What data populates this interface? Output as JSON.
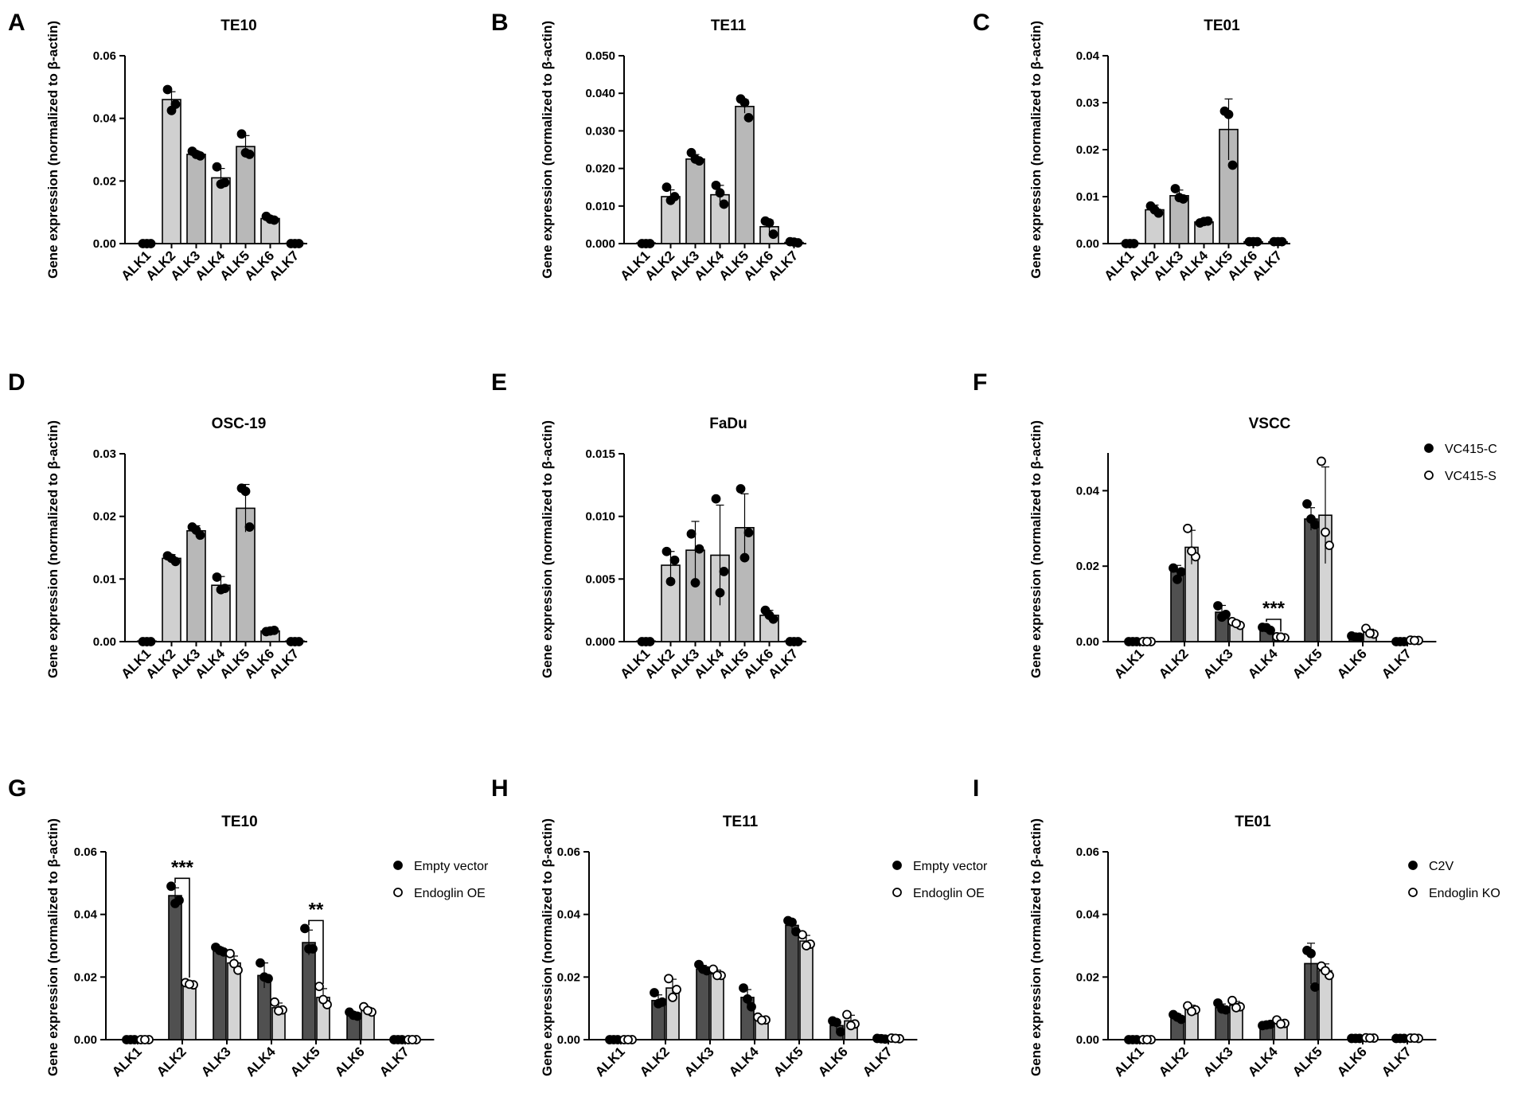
{
  "figure": {
    "ylabel": "Gene expression (normalized to β-actin)",
    "colors": {
      "single_bar": "#c8c8c8",
      "ctrl_bar": "#505050",
      "treat_bar": "#d4d4d4",
      "axis": "#000000",
      "point": "#000000"
    }
  },
  "chart_data": [
    {
      "panel": "A",
      "type": "bar",
      "title": "TE10",
      "categories": [
        "ALK1",
        "ALK2",
        "ALK3",
        "ALK4",
        "ALK5",
        "ALK6",
        "ALK7"
      ],
      "ylabel": "Gene expression (normalized to β-actin)",
      "ylim": [
        0,
        0.06
      ],
      "yticks": [
        0,
        0.02,
        0.04,
        0.06
      ],
      "ytick_labels": [
        "0.00",
        "0.02",
        "0.04",
        "0.06"
      ],
      "series": [
        {
          "name": "",
          "values": [
            0.0001,
            0.046,
            0.0285,
            0.021,
            0.031,
            0.008,
            0.0001
          ],
          "errors": [
            0.0001,
            0.0025,
            0.001,
            0.003,
            0.0035,
            0.0008,
            0.0001
          ],
          "points": [
            [
              0,
              0,
              0
            ],
            [
              0.0492,
              0.0445,
              0.0425
            ],
            [
              0.0295,
              0.028,
              0.0285
            ],
            [
              0.0245,
              0.0195,
              0.019
            ],
            [
              0.035,
              0.0285,
              0.029
            ],
            [
              0.0087,
              0.0075,
              0.0078
            ],
            [
              0,
              0,
              0
            ]
          ]
        }
      ]
    },
    {
      "panel": "B",
      "type": "bar",
      "title": "TE11",
      "categories": [
        "ALK1",
        "ALK2",
        "ALK3",
        "ALK4",
        "ALK5",
        "ALK6",
        "ALK7"
      ],
      "ylabel": "Gene expression (normalized to β-actin)",
      "ylim": [
        0,
        0.05
      ],
      "yticks": [
        0,
        0.01,
        0.02,
        0.03,
        0.04,
        0.05
      ],
      "ytick_labels": [
        "0.000",
        "0.010",
        "0.020",
        "0.030",
        "0.040",
        "0.050"
      ],
      "series": [
        {
          "name": "",
          "values": [
            0.0002,
            0.0125,
            0.0225,
            0.013,
            0.0365,
            0.0045,
            0.0003
          ],
          "errors": [
            0.0002,
            0.0018,
            0.0012,
            0.0025,
            0.0018,
            0.0018,
            0.0002
          ],
          "points": [
            [
              0,
              0,
              0
            ],
            [
              0.015,
              0.0125,
              0.0115
            ],
            [
              0.0242,
              0.022,
              0.0225
            ],
            [
              0.0155,
              0.0105,
              0.0135
            ],
            [
              0.0385,
              0.0335,
              0.0375
            ],
            [
              0.006,
              0.0025,
              0.0055
            ],
            [
              0.0005,
              0.0002,
              0.0004
            ]
          ]
        }
      ]
    },
    {
      "panel": "C",
      "type": "bar",
      "title": "TE01",
      "categories": [
        "ALK1",
        "ALK2",
        "ALK3",
        "ALK4",
        "ALK5",
        "ALK6",
        "ALK7"
      ],
      "ylabel": "Gene expression (normalized to β-actin)",
      "ylim": [
        0,
        0.04
      ],
      "yticks": [
        0,
        0.01,
        0.02,
        0.03,
        0.04
      ],
      "ytick_labels": [
        "0.00",
        "0.01",
        "0.02",
        "0.03",
        "0.04"
      ],
      "series": [
        {
          "name": "",
          "values": [
            0.0001,
            0.0072,
            0.0102,
            0.0046,
            0.0243,
            0.0004,
            0.0004
          ],
          "errors": [
            0.0001,
            0.001,
            0.0012,
            0.0005,
            0.0065,
            0.0002,
            0.0002
          ],
          "points": [
            [
              0,
              0,
              0
            ],
            [
              0.008,
              0.0065,
              0.0072
            ],
            [
              0.0117,
              0.0095,
              0.0098
            ],
            [
              0.0044,
              0.0048,
              0.0047
            ],
            [
              0.0282,
              0.0167,
              0.0275
            ],
            [
              0.0004,
              0.0004,
              0.0004
            ],
            [
              0.0004,
              0.0004,
              0.0004
            ]
          ]
        }
      ]
    },
    {
      "panel": "D",
      "type": "bar",
      "title": "OSC-19",
      "categories": [
        "ALK1",
        "ALK2",
        "ALK3",
        "ALK4",
        "ALK5",
        "ALK6",
        "ALK7"
      ],
      "ylabel": "Gene expression (normalized to β-actin)",
      "ylim": [
        0,
        0.03
      ],
      "yticks": [
        0,
        0.01,
        0.02,
        0.03
      ],
      "ytick_labels": [
        "0.00",
        "0.01",
        "0.02",
        "0.03"
      ],
      "series": [
        {
          "name": "",
          "values": [
            0.0001,
            0.0133,
            0.0177,
            0.009,
            0.0213,
            0.0017,
            0.0001
          ],
          "errors": [
            0.0001,
            0.0006,
            0.0008,
            0.0014,
            0.0038,
            0.0002,
            0.0001
          ],
          "points": [
            [
              0,
              0,
              0
            ],
            [
              0.0137,
              0.0128,
              0.0133
            ],
            [
              0.0183,
              0.017,
              0.0178
            ],
            [
              0.0103,
              0.0085,
              0.0083
            ],
            [
              0.0245,
              0.0183,
              0.024
            ],
            [
              0.0016,
              0.0018,
              0.0017
            ],
            [
              0,
              0,
              0
            ]
          ]
        }
      ]
    },
    {
      "panel": "E",
      "type": "bar",
      "title": "FaDu",
      "categories": [
        "ALK1",
        "ALK2",
        "ALK3",
        "ALK4",
        "ALK5",
        "ALK6",
        "ALK7"
      ],
      "ylabel": "Gene expression (normalized to β-actin)",
      "ylim": [
        0,
        0.015
      ],
      "yticks": [
        0,
        0.005,
        0.01,
        0.015
      ],
      "ytick_labels": [
        "0.000",
        "0.005",
        "0.010",
        "0.015"
      ],
      "series": [
        {
          "name": "",
          "values": [
            5e-05,
            0.0061,
            0.0073,
            0.0069,
            0.0091,
            0.0021,
            5e-05
          ],
          "errors": [
            5e-05,
            0.0011,
            0.0023,
            0.004,
            0.0027,
            0.0004,
            5e-05
          ],
          "points": [
            [
              0,
              0,
              0
            ],
            [
              0.0072,
              0.0065,
              0.0048
            ],
            [
              0.0086,
              0.0074,
              0.0047
            ],
            [
              0.0114,
              0.0056,
              0.0039
            ],
            [
              0.0122,
              0.0087,
              0.0067
            ],
            [
              0.0025,
              0.0018,
              0.0021
            ],
            [
              0,
              0,
              0
            ]
          ]
        }
      ]
    },
    {
      "panel": "F",
      "type": "bar",
      "title": "VSCC",
      "categories": [
        "ALK1",
        "ALK2",
        "ALK3",
        "ALK4",
        "ALK5",
        "ALK6",
        "ALK7"
      ],
      "ylabel": "Gene expression (normalized to β-actin)",
      "ylim": [
        0,
        0.05
      ],
      "yticks": [
        0,
        0.02,
        0.04
      ],
      "ytick_labels": [
        "0.00",
        "0.02",
        "0.04"
      ],
      "series": [
        {
          "name": "VC415-C",
          "values": [
            0.0002,
            0.0185,
            0.0078,
            0.0035,
            0.0325,
            0.0013,
            0.0002
          ],
          "errors": [
            0.0002,
            0.0017,
            0.0018,
            0.0005,
            0.003,
            0.0003,
            0.0002
          ],
          "points": [
            [
              0,
              0,
              0
            ],
            [
              0.0195,
              0.0185,
              0.0165
            ],
            [
              0.0095,
              0.0072,
              0.0065
            ],
            [
              0.0038,
              0.003,
              0.0037
            ],
            [
              0.0365,
              0.031,
              0.0325
            ],
            [
              0.0015,
              0.0012,
              0.0012
            ],
            [
              0,
              0,
              0
            ]
          ]
        },
        {
          "name": "VC415-S",
          "values": [
            0.0002,
            0.025,
            0.0048,
            0.0012,
            0.0335,
            0.0025,
            0.0003
          ],
          "errors": [
            0.0002,
            0.0045,
            0.0008,
            0.0002,
            0.0128,
            0.0008,
            0.0002
          ],
          "points": [
            [
              0,
              0,
              0
            ],
            [
              0.03,
              0.0225,
              0.024
            ],
            [
              0.0053,
              0.0043,
              0.0048
            ],
            [
              0.0013,
              0.001,
              0.0012
            ],
            [
              0.0478,
              0.0255,
              0.029
            ],
            [
              0.0035,
              0.002,
              0.0022
            ],
            [
              0.0004,
              0.0003,
              0.0003
            ]
          ]
        }
      ],
      "annotations": [
        {
          "text": "***",
          "category": "ALK4"
        }
      ]
    },
    {
      "panel": "G",
      "type": "bar",
      "title": "TE10",
      "categories": [
        "ALK1",
        "ALK2",
        "ALK3",
        "ALK4",
        "ALK5",
        "ALK6",
        "ALK7"
      ],
      "ylabel": "Gene expression (normalized to β-actin)",
      "ylim": [
        0,
        0.06
      ],
      "yticks": [
        0,
        0.02,
        0.04,
        0.06
      ],
      "ytick_labels": [
        "0.00",
        "0.02",
        "0.04",
        "0.06"
      ],
      "series": [
        {
          "name": "Empty vector",
          "values": [
            0.0002,
            0.046,
            0.0285,
            0.0205,
            0.031,
            0.008,
            0.0002
          ],
          "errors": [
            0.0002,
            0.0025,
            0.001,
            0.004,
            0.004,
            0.0008,
            0.0002
          ],
          "points": [
            [
              0,
              0,
              0
            ],
            [
              0.049,
              0.0445,
              0.0435
            ],
            [
              0.0295,
              0.028,
              0.0285
            ],
            [
              0.0245,
              0.0195,
              0.02
            ],
            [
              0.0355,
              0.029,
              0.029
            ],
            [
              0.0088,
              0.0075,
              0.0078
            ],
            [
              0,
              0,
              0
            ]
          ]
        },
        {
          "name": "Endoglin OE",
          "values": [
            0.0002,
            0.0178,
            0.0245,
            0.0102,
            0.0135,
            0.0095,
            0.0002
          ],
          "errors": [
            0.0002,
            0.0005,
            0.0022,
            0.0015,
            0.0028,
            0.0008,
            0.0002
          ],
          "points": [
            [
              0,
              0,
              0
            ],
            [
              0.0182,
              0.0175,
              0.0177
            ],
            [
              0.0275,
              0.0222,
              0.0243
            ],
            [
              0.012,
              0.0095,
              0.0092
            ],
            [
              0.017,
              0.0112,
              0.0128
            ],
            [
              0.0105,
              0.0088,
              0.0093
            ],
            [
              0,
              0,
              0
            ]
          ]
        }
      ],
      "annotations": [
        {
          "text": "***",
          "category": "ALK2"
        },
        {
          "text": "**",
          "category": "ALK5"
        }
      ]
    },
    {
      "panel": "H",
      "type": "bar",
      "title": "TE11",
      "categories": [
        "ALK1",
        "ALK2",
        "ALK3",
        "ALK4",
        "ALK5",
        "ALK6",
        "ALK7"
      ],
      "ylabel": "Gene expression (normalized to β-actin)",
      "ylim": [
        0,
        0.06
      ],
      "yticks": [
        0,
        0.02,
        0.04,
        0.06
      ],
      "ytick_labels": [
        "0.00",
        "0.02",
        "0.04",
        "0.06"
      ],
      "series": [
        {
          "name": "Empty vector",
          "values": [
            0.0002,
            0.0125,
            0.0225,
            0.0135,
            0.0365,
            0.0045,
            0.0003
          ],
          "errors": [
            0.0002,
            0.0018,
            0.0012,
            0.0025,
            0.0018,
            0.0018,
            0.0002
          ],
          "points": [
            [
              0,
              0,
              0
            ],
            [
              0.015,
              0.012,
              0.0115
            ],
            [
              0.024,
              0.022,
              0.0225
            ],
            [
              0.0165,
              0.0105,
              0.013
            ],
            [
              0.038,
              0.0345,
              0.0375
            ],
            [
              0.006,
              0.0025,
              0.0055
            ],
            [
              0.0004,
              0.0002,
              0.0003
            ]
          ]
        },
        {
          "name": "Endoglin OE",
          "values": [
            0.0002,
            0.0165,
            0.021,
            0.0065,
            0.0315,
            0.006,
            0.0004
          ],
          "errors": [
            0.0002,
            0.0028,
            0.0012,
            0.0008,
            0.0018,
            0.0018,
            0.0002
          ],
          "points": [
            [
              0,
              0,
              0
            ],
            [
              0.0195,
              0.016,
              0.0135
            ],
            [
              0.0225,
              0.0205,
              0.0205
            ],
            [
              0.0072,
              0.0063,
              0.0062
            ],
            [
              0.0335,
              0.0305,
              0.03
            ],
            [
              0.008,
              0.005,
              0.0045
            ],
            [
              0.0005,
              0.0003,
              0.0004
            ]
          ]
        }
      ]
    },
    {
      "panel": "I",
      "type": "bar",
      "title": "TE01",
      "categories": [
        "ALK1",
        "ALK2",
        "ALK3",
        "ALK4",
        "ALK5",
        "ALK6",
        "ALK7"
      ],
      "ylabel": "Gene expression (normalized to β-actin)",
      "ylim": [
        0,
        0.06
      ],
      "yticks": [
        0,
        0.02,
        0.04,
        0.06
      ],
      "ytick_labels": [
        "0.00",
        "0.02",
        "0.04",
        "0.06"
      ],
      "series": [
        {
          "name": "C2V",
          "values": [
            0.0002,
            0.0072,
            0.0102,
            0.0047,
            0.0243,
            0.0004,
            0.0004
          ],
          "errors": [
            0.0002,
            0.001,
            0.0012,
            0.0005,
            0.0065,
            0.0002,
            0.0002
          ],
          "points": [
            [
              0,
              0,
              0
            ],
            [
              0.008,
              0.0065,
              0.0072
            ],
            [
              0.0117,
              0.0095,
              0.0098
            ],
            [
              0.0045,
              0.0049,
              0.0047
            ],
            [
              0.0285,
              0.0168,
              0.0275
            ],
            [
              0.0004,
              0.0004,
              0.0004
            ],
            [
              0.0004,
              0.0004,
              0.0004
            ]
          ]
        },
        {
          "name": "Endoglin KO",
          "values": [
            0.0002,
            0.0098,
            0.011,
            0.0055,
            0.022,
            0.0005,
            0.0005
          ],
          "errors": [
            0.0002,
            0.0012,
            0.0012,
            0.0008,
            0.0022,
            0.0003,
            0.0002
          ],
          "points": [
            [
              0,
              0,
              0
            ],
            [
              0.0108,
              0.0095,
              0.009
            ],
            [
              0.0125,
              0.0105,
              0.0102
            ],
            [
              0.0063,
              0.0052,
              0.005
            ],
            [
              0.0235,
              0.0205,
              0.022
            ],
            [
              0.0006,
              0.0005,
              0.0005
            ],
            [
              0.0005,
              0.0004,
              0.0005
            ]
          ]
        }
      ]
    }
  ]
}
